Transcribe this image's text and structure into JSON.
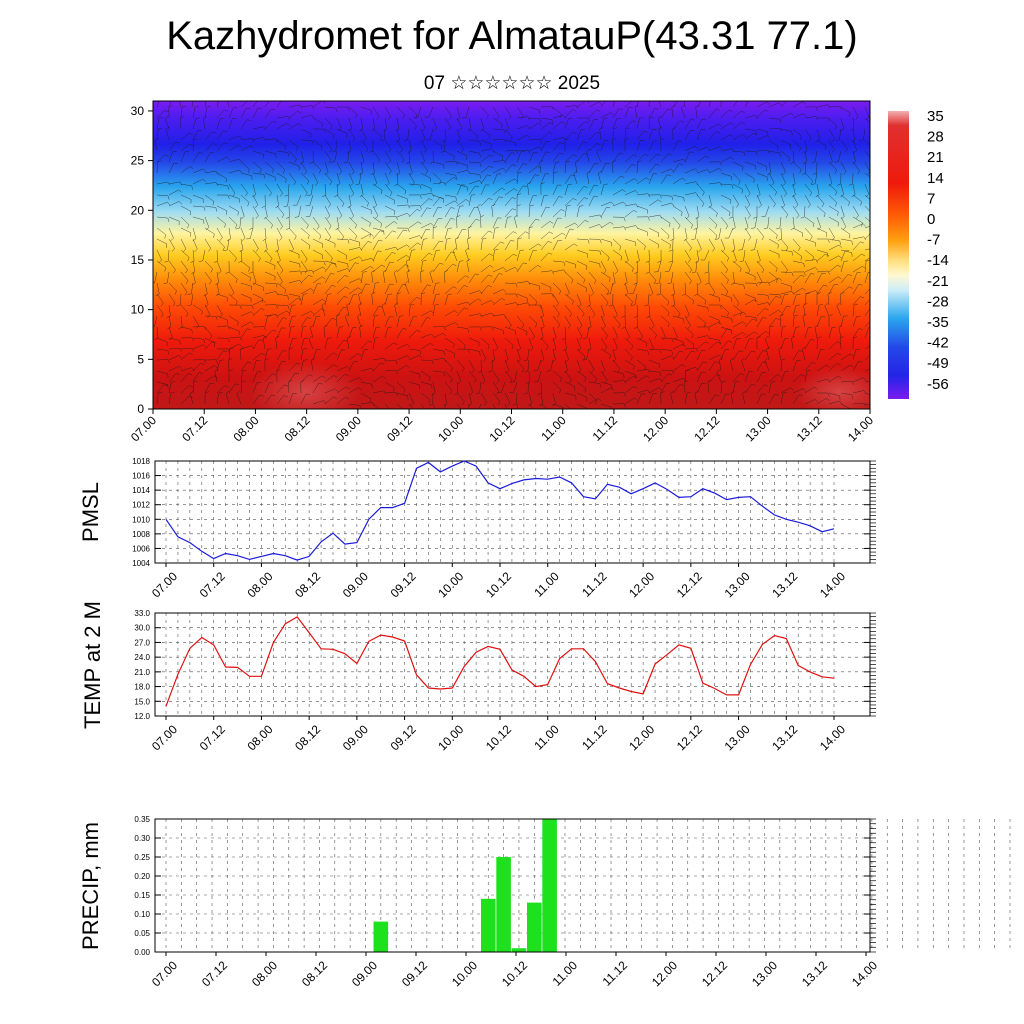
{
  "title": "Kazhydromet for AlmatauP(43.31 77.1)",
  "subtitle": "07 ☆☆☆☆☆☆ 2025",
  "colors": {
    "pmsl_line": "#1a1adb",
    "temp_line": "#e01010",
    "precip_bar": "#1ee11e"
  },
  "chart_data": [
    {
      "type": "heatmap",
      "title": "",
      "description_hidden": false,
      "x_ticks": [
        "07.00",
        "07.12",
        "08.00",
        "08.12",
        "09.00",
        "09.12",
        "10.00",
        "10.12",
        "11.00",
        "11.12",
        "12.00",
        "12.12",
        "13.00",
        "13.12",
        "14.00"
      ],
      "y_ticks": [
        "0",
        "5",
        "10",
        "15",
        "20",
        "25",
        "30"
      ],
      "ylim": [
        0,
        31
      ],
      "colorbar_labels": [
        "35",
        "28",
        "21",
        "14",
        "7",
        "0",
        "-7",
        "-14",
        "-21",
        "-28",
        "-35",
        "-42",
        "-49",
        "-56"
      ],
      "overlay": "wind barbs"
    },
    {
      "type": "line",
      "ylabel": "PMSL",
      "ylim": [
        1004,
        1018
      ],
      "y_ticks": [
        "1018",
        "1016",
        "1014",
        "1012",
        "1010",
        "1008",
        "1006",
        "1004"
      ],
      "x_ticks": [
        "07.00",
        "07.12",
        "08.00",
        "08.12",
        "09.00",
        "09.12",
        "10.00",
        "10.12",
        "11.00",
        "11.12",
        "12.00",
        "12.12",
        "13.00",
        "13.12",
        "14.00"
      ],
      "values": [
        1010,
        1007.6,
        1006.8,
        1005.6,
        1004.6,
        1005.3,
        1005,
        1004.5,
        1004.9,
        1005.3,
        1005,
        1004.4,
        1004.9,
        1006.9,
        1008.1,
        1006.6,
        1006.8,
        1010,
        1011.6,
        1011.6,
        1012.2,
        1017,
        1017.8,
        1016.5,
        1017.3,
        1018,
        1017.3,
        1015,
        1014.2,
        1014.9,
        1015.4,
        1015.6,
        1015.5,
        1015.8,
        1015,
        1013.1,
        1012.8,
        1014.8,
        1014.4,
        1013.5,
        1014.2,
        1015,
        1014.1,
        1013,
        1013.1,
        1014.2,
        1013.6,
        1012.7,
        1013,
        1013.1,
        1011.8,
        1010.6,
        1010,
        1009.6,
        1009.1,
        1008.3,
        1008.7
      ]
    },
    {
      "type": "line",
      "ylabel": "TEMP at 2 M",
      "ylim": [
        12,
        33
      ],
      "y_ticks": [
        "33.0",
        "30.0",
        "27.0",
        "24.0",
        "21.0",
        "18.0",
        "15.0",
        "12.0"
      ],
      "x_ticks": [
        "07.00",
        "07.12",
        "08.00",
        "08.12",
        "09.00",
        "09.12",
        "10.00",
        "10.12",
        "11.00",
        "11.12",
        "12.00",
        "12.12",
        "13.00",
        "13.12",
        "14.00"
      ],
      "values": [
        14,
        20.5,
        25.8,
        28,
        26.5,
        22,
        21.9,
        20.1,
        20.1,
        27,
        30.8,
        32.2,
        29,
        25.7,
        25.6,
        24.7,
        22.7,
        27.2,
        28.5,
        28.1,
        27.3,
        20.4,
        17.7,
        17.5,
        17.7,
        22.1,
        25,
        26.2,
        25.6,
        21.4,
        20.1,
        18,
        18.4,
        23.7,
        25.7,
        25.7,
        23.1,
        18.6,
        17.7,
        17,
        16.5,
        22.6,
        24.5,
        26.5,
        25.8,
        18.7,
        17.6,
        16.3,
        16.3,
        22.5,
        26.6,
        28.4,
        27.8,
        22.3,
        21,
        20,
        19.7
      ]
    },
    {
      "type": "bar",
      "ylabel": "PRECIP, mm",
      "ylim": [
        0,
        0.35
      ],
      "y_ticks": [
        "0.35",
        "0.30",
        "0.25",
        "0.20",
        "0.15",
        "0.10",
        "0.05",
        "0.00"
      ],
      "x_ticks": [
        "07.00",
        "07.12",
        "08.00",
        "08.12",
        "09.00",
        "09.12",
        "10.00",
        "10.12",
        "11.00",
        "11.12",
        "12.00",
        "12.12",
        "13.00",
        "13.12",
        "14.00"
      ],
      "values": [
        0,
        0,
        0,
        0,
        0,
        0,
        0,
        0,
        0,
        0,
        0,
        0,
        0,
        0,
        0.08,
        0,
        0,
        0,
        0,
        0,
        0,
        0.14,
        0.25,
        0.01,
        0.13,
        0.35,
        0,
        0,
        0,
        0,
        0,
        0,
        0,
        0,
        0,
        0,
        0,
        0,
        0,
        0,
        0,
        0,
        0,
        0,
        0,
        0,
        0,
        0,
        0,
        0,
        0,
        0,
        0,
        0,
        0,
        0
      ]
    }
  ]
}
